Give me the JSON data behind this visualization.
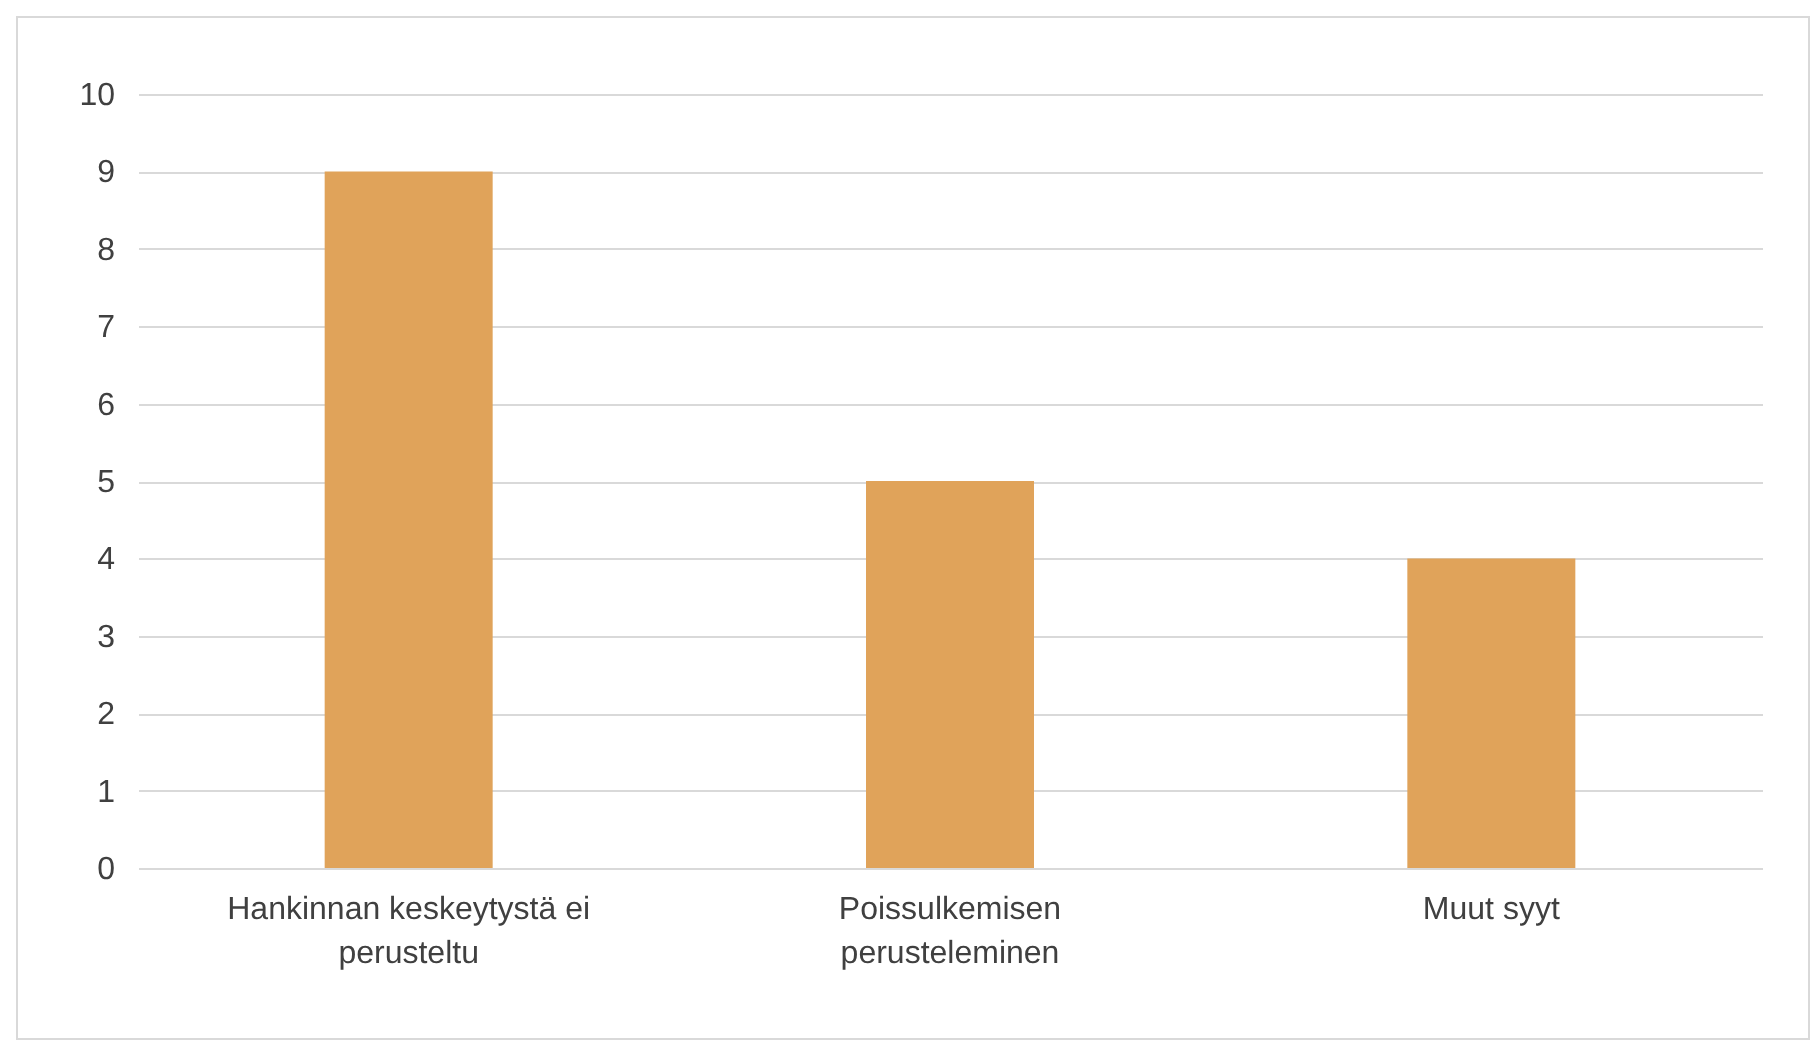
{
  "chart_data": {
    "type": "bar",
    "categories": [
      "Hankinnan keskeytystä ei perusteltu",
      "Poissulkemisen perusteleminen",
      "Muut syyt"
    ],
    "values": [
      9,
      5,
      4
    ],
    "color": "#e0a35a",
    "ylim": [
      0,
      10
    ],
    "yticks": [
      0,
      1,
      2,
      3,
      4,
      5,
      6,
      7,
      8,
      9,
      10
    ],
    "grid": "y"
  }
}
